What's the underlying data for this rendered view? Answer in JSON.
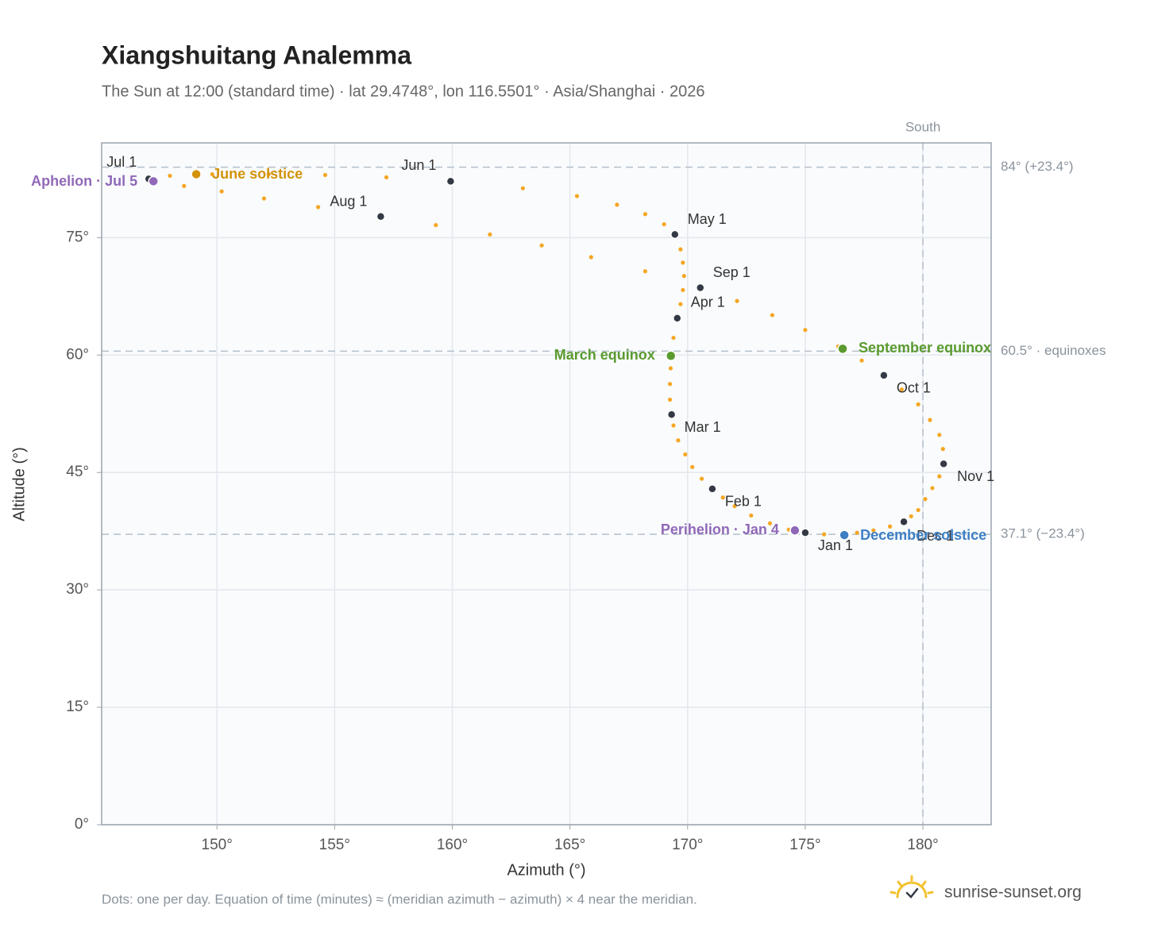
{
  "chart_data": {
    "type": "analemma",
    "title": "Xiangshuitang Analemma",
    "subtitle": "The Sun at 12:00 (standard time) · lat 29.4748°, lon 116.5501° · Asia/Shanghai · 2026",
    "x_label": "Azimuth (°)",
    "y_label": "Altitude (°)",
    "footnote": "Dots: one per day. Equation of time (minutes) ≈ (meridian azimuth − azimuth) × 4 near the meridian.",
    "brand": "sunrise-sunset.org",
    "xlim": [
      145.1,
      182.9
    ],
    "ylim": [
      0,
      87.1
    ],
    "xticks": [
      {
        "value": 150,
        "label": "150°"
      },
      {
        "value": 155,
        "label": "155°"
      },
      {
        "value": 160,
        "label": "160°"
      },
      {
        "value": 165,
        "label": "165°"
      },
      {
        "value": 170,
        "label": "170°"
      },
      {
        "value": 175,
        "label": "175°"
      },
      {
        "value": 180,
        "label": "180°"
      }
    ],
    "yticks": [
      {
        "value": 0,
        "label": "0°"
      },
      {
        "value": 15,
        "label": "15°"
      },
      {
        "value": 30,
        "label": "30°"
      },
      {
        "value": 45,
        "label": "45°"
      },
      {
        "value": 60,
        "label": "60°"
      },
      {
        "value": 75,
        "label": "75°"
      }
    ],
    "grid": true,
    "dot_color": "#f5a623",
    "marker_color": "#333a45",
    "days": {
      "x": [
        175.0,
        174.3,
        173.5,
        172.7,
        172.0,
        171.5,
        171.05,
        170.6,
        170.2,
        169.9,
        169.6,
        169.4,
        169.32,
        169.25,
        169.25,
        169.28,
        169.3,
        169.4,
        169.56,
        169.7,
        169.8,
        169.85,
        169.8,
        169.7,
        169.46,
        169.0,
        168.2,
        167.0,
        165.3,
        163.0,
        159.93,
        157.2,
        154.6,
        152.2,
        149.8,
        148.0,
        147.1,
        147.3,
        148.6,
        150.2,
        152.0,
        154.3,
        156.96,
        159.3,
        161.6,
        163.8,
        165.9,
        168.2,
        170.54,
        172.1,
        173.6,
        175.0,
        176.4,
        177.4,
        178.34,
        179.1,
        179.8,
        180.3,
        180.7,
        180.85,
        180.88,
        180.7,
        180.4,
        180.1,
        179.8,
        179.5,
        179.19,
        178.6,
        177.9,
        177.2,
        176.6,
        175.8
      ],
      "y": [
        37.3,
        37.7,
        38.5,
        39.5,
        40.7,
        41.8,
        42.9,
        44.2,
        45.7,
        47.3,
        49.1,
        51.0,
        52.4,
        54.3,
        56.3,
        58.3,
        60.2,
        62.2,
        64.7,
        66.5,
        68.3,
        70.1,
        71.8,
        73.5,
        75.4,
        76.7,
        78.0,
        79.2,
        80.3,
        81.3,
        82.2,
        82.7,
        83.0,
        83.1,
        83.1,
        82.9,
        82.5,
        82.2,
        81.6,
        80.9,
        80.0,
        78.9,
        77.7,
        76.6,
        75.4,
        74.0,
        72.5,
        70.7,
        68.6,
        66.9,
        65.1,
        63.2,
        61.1,
        59.3,
        57.4,
        55.6,
        53.7,
        51.7,
        49.8,
        48.0,
        46.1,
        44.5,
        43.0,
        41.6,
        40.2,
        39.4,
        38.7,
        38.1,
        37.6,
        37.3,
        37.0,
        37.1
      ]
    },
    "markers": [
      {
        "label": "Jan 1",
        "x": 175.0,
        "y": 37.3
      },
      {
        "label": "Feb 1",
        "x": 171.05,
        "y": 42.9
      },
      {
        "label": "Mar 1",
        "x": 169.32,
        "y": 52.4
      },
      {
        "label": "Apr 1",
        "x": 169.56,
        "y": 64.7
      },
      {
        "label": "May 1",
        "x": 169.46,
        "y": 75.4
      },
      {
        "label": "Jun 1",
        "x": 159.93,
        "y": 82.2
      },
      {
        "label": "Jul 1",
        "x": 147.1,
        "y": 82.5
      },
      {
        "label": "Aug 1",
        "x": 156.96,
        "y": 77.7
      },
      {
        "label": "Sep 1",
        "x": 170.54,
        "y": 68.6
      },
      {
        "label": "Oct 1",
        "x": 178.34,
        "y": 57.4
      },
      {
        "label": "Nov 1",
        "x": 180.88,
        "y": 46.1
      },
      {
        "label": "Dec 1",
        "x": 179.19,
        "y": 38.7
      }
    ],
    "events": [
      {
        "label": "March equinox",
        "x": 169.29,
        "y": 59.9,
        "color": "#5a9a2e"
      },
      {
        "label": "June solstice",
        "x": 149.12,
        "y": 83.1,
        "color": "#d4920a"
      },
      {
        "label": "September equinox",
        "x": 176.59,
        "y": 60.8,
        "color": "#5a9a2e"
      },
      {
        "label": "December solstice",
        "x": 176.66,
        "y": 37.0,
        "color": "#3d7fc4"
      },
      {
        "label": "Perihelion · Jan 4",
        "x": 174.56,
        "y": 37.6,
        "color": "#9068b8"
      },
      {
        "label": "Aphelion · Jul 5",
        "x": 147.3,
        "y": 82.2,
        "color": "#9068b8"
      }
    ],
    "hlines": [
      {
        "value": 84,
        "label": "84° (+23.4°)"
      },
      {
        "value": 60.5,
        "label": "60.5° · equinoxes"
      },
      {
        "value": 37.1,
        "label": "37.1° (−23.4°)"
      }
    ],
    "vline": {
      "value": 180,
      "label": "South"
    }
  }
}
